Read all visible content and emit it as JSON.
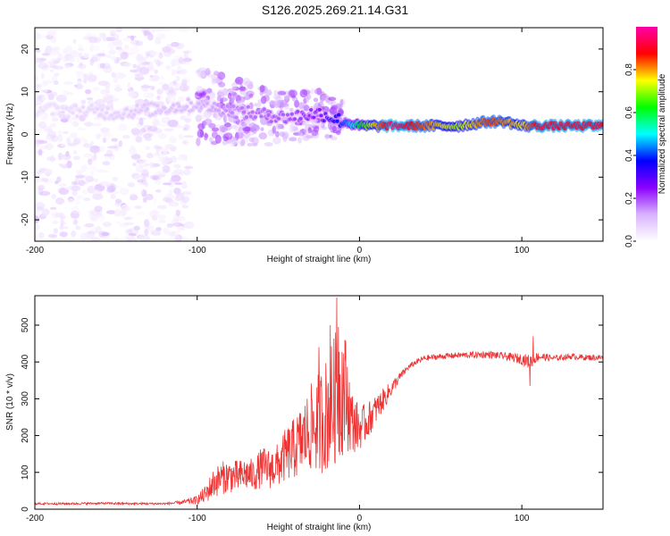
{
  "page": {
    "title": "S126.2025.269.21.14.G31"
  },
  "chart_data": [
    {
      "type": "heatmap",
      "title": "S126.2025.269.21.14.G31",
      "xlabel": "Height of straight line (km)",
      "ylabel": "Frequency (Hz)",
      "xlim": [
        -200,
        150
      ],
      "ylim": [
        -25,
        25
      ],
      "x_ticks": [
        -200,
        -100,
        0,
        100
      ],
      "y_ticks": [
        -20,
        -10,
        0,
        10,
        20
      ],
      "tick_labels_x": [
        "-200",
        "-100",
        "0",
        "100"
      ],
      "tick_labels_y": [
        "-20",
        "-10",
        "0",
        "10",
        "20"
      ],
      "colorbar": {
        "label": "Normalized spectral amplitude",
        "range": [
          0.0,
          1.0
        ],
        "ticks": [
          0.0,
          0.2,
          0.4,
          0.6,
          0.8
        ],
        "tick_labels": [
          "0.0",
          "0.2",
          "0.4",
          "0.6",
          "0.8"
        ],
        "colormap": [
          "#ffffff",
          "#d9b3ff",
          "#8b00ff",
          "#0000ff",
          "#00ffff",
          "#00ff00",
          "#ffff00",
          "#ff0000",
          "#ff00aa"
        ]
      },
      "ridge": {
        "description_points_x": [
          -200,
          -150,
          -100,
          -70,
          -45,
          -25,
          -10,
          0,
          20,
          60,
          80,
          90,
          100,
          110,
          150
        ],
        "frequency_hz": [
          6,
          5,
          7,
          5,
          4,
          5,
          3,
          2,
          2,
          2,
          3,
          3,
          2,
          2,
          2
        ],
        "amplitude": [
          0.05,
          0.08,
          0.12,
          0.18,
          0.2,
          0.25,
          0.4,
          0.6,
          0.95,
          0.7,
          0.85,
          0.8,
          0.75,
          0.9,
          0.9
        ]
      }
    },
    {
      "type": "line",
      "xlabel": "Height of straight line (km)",
      "ylabel": "SNR (10 * v/v)",
      "xlim": [
        -200,
        150
      ],
      "ylim": [
        0,
        580
      ],
      "x_ticks": [
        -200,
        -100,
        0,
        100
      ],
      "y_ticks": [
        0,
        100,
        200,
        300,
        400,
        500
      ],
      "tick_labels_x": [
        "-200",
        "-100",
        "0",
        "100"
      ],
      "tick_labels_y": [
        "0",
        "100",
        "200",
        "300",
        "400",
        "500"
      ],
      "series_color": "#ee3333",
      "x": [
        -200,
        -180,
        -160,
        -140,
        -120,
        -110,
        -100,
        -95,
        -90,
        -85,
        -80,
        -75,
        -70,
        -65,
        -60,
        -55,
        -50,
        -45,
        -40,
        -35,
        -30,
        -25,
        -20,
        -15,
        -12,
        -10,
        -8,
        -5,
        0,
        5,
        10,
        15,
        20,
        25,
        30,
        35,
        40,
        50,
        60,
        80,
        90,
        100,
        105,
        110,
        120,
        130,
        140,
        150
      ],
      "y": [
        15,
        15,
        16,
        15,
        15,
        18,
        25,
        40,
        70,
        85,
        90,
        88,
        95,
        92,
        115,
        110,
        120,
        150,
        165,
        190,
        220,
        235,
        260,
        300,
        330,
        330,
        310,
        240,
        220,
        240,
        270,
        300,
        330,
        360,
        385,
        400,
        410,
        415,
        418,
        420,
        415,
        408,
        400,
        415,
        410,
        415,
        412,
        412
      ],
      "noise_amplitude": [
        3,
        3,
        3,
        3,
        3,
        5,
        12,
        25,
        40,
        45,
        45,
        45,
        45,
        45,
        55,
        55,
        60,
        75,
        85,
        100,
        120,
        140,
        160,
        180,
        200,
        180,
        150,
        90,
        60,
        50,
        40,
        30,
        20,
        12,
        8,
        8,
        8,
        8,
        8,
        10,
        10,
        15,
        20,
        12,
        8,
        8,
        8,
        8
      ],
      "spikes": [
        {
          "x": -14,
          "y": 575
        },
        {
          "x": -13,
          "y": 495
        },
        {
          "x": -25,
          "y": 440
        },
        {
          "x": -18,
          "y": 500
        },
        {
          "x": 105,
          "y": 335
        },
        {
          "x": 107,
          "y": 470
        }
      ]
    }
  ]
}
